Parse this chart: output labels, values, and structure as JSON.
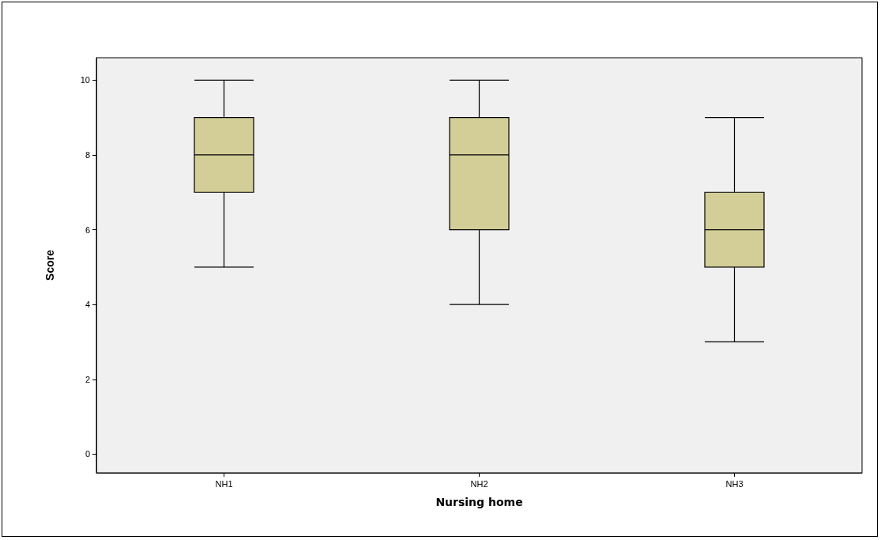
{
  "chart_data": {
    "type": "box",
    "xlabel": "Nursing home",
    "ylabel": "Score",
    "categories": [
      "NH1",
      "NH2",
      "NH3"
    ],
    "boxes": [
      {
        "low": 5,
        "q1": 7,
        "median": 8,
        "q3": 9,
        "high": 10
      },
      {
        "low": 4,
        "q1": 6,
        "median": 8,
        "q3": 9,
        "high": 10
      },
      {
        "low": 3,
        "q1": 5,
        "median": 6,
        "q3": 7,
        "high": 9
      }
    ],
    "color": "#d3ce97",
    "ylim": [
      -0.5,
      10.6
    ],
    "yticks": [
      0,
      2,
      4,
      6,
      8,
      10
    ],
    "grid": false
  }
}
